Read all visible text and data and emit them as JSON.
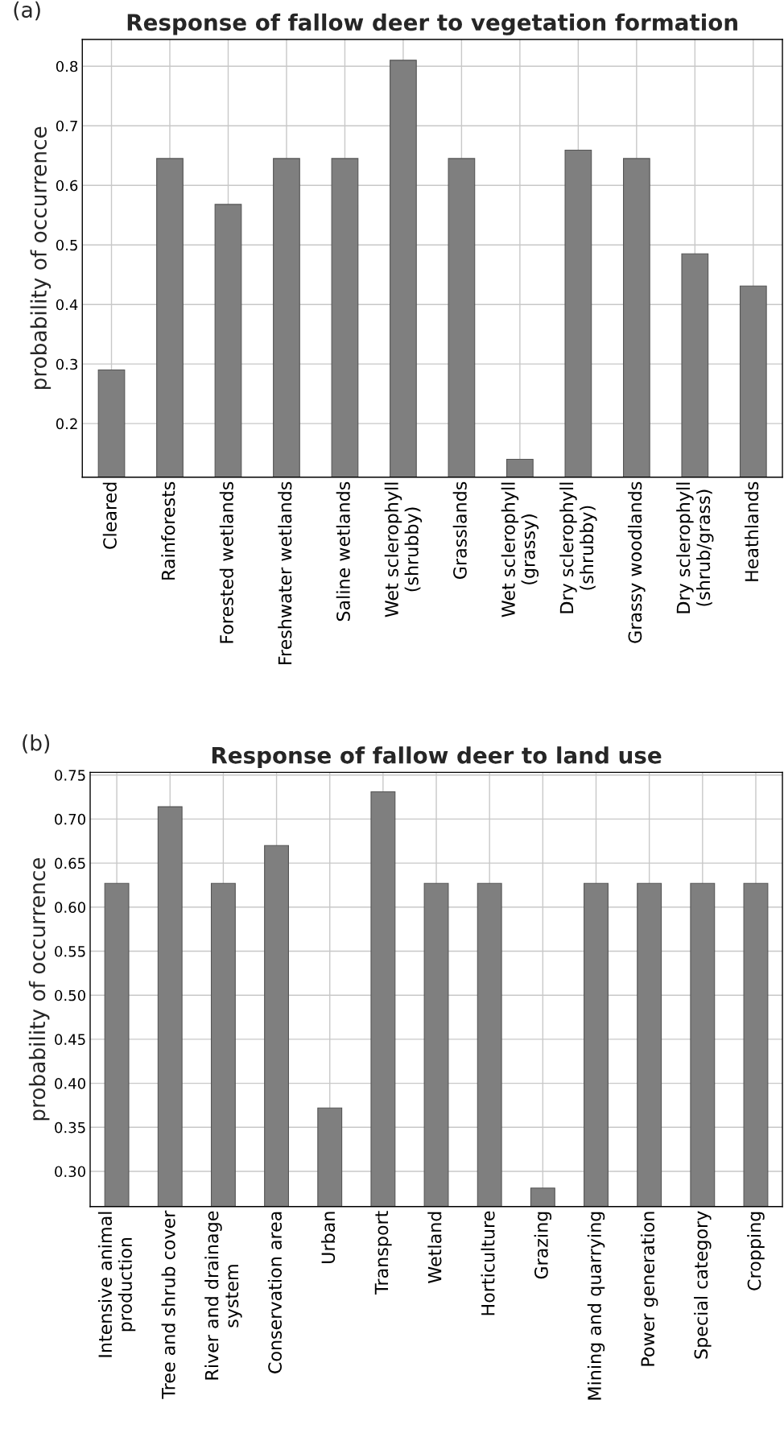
{
  "chart_data": [
    {
      "type": "bar",
      "title": "Response of fallow deer to vegetation formation",
      "ylabel": "probability of occurrence",
      "annotations": [
        "(a)"
      ],
      "categories": [
        "Cleared",
        "Rainforests",
        "Forested wetlands",
        "Freshwater wetlands",
        "Saline wetlands",
        "Wet sclerophyll\n(shrubby)",
        "Grasslands",
        "Wet sclerophyll\n(grassy)",
        "Dry sclerophyll\n(shrubby)",
        "Grassy woodlands",
        "Dry sclerophyll\n(shrub/grass)",
        "Heathlands"
      ],
      "values": [
        0.29,
        0.645,
        0.568,
        0.645,
        0.645,
        0.81,
        0.645,
        0.14,
        0.659,
        0.645,
        0.485,
        0.431
      ],
      "color": "#7f7f7f",
      "ylim": [
        0.11,
        0.845
      ],
      "yticks": [
        0.2,
        0.3,
        0.4,
        0.5,
        0.6,
        0.7,
        0.8
      ],
      "grid": true,
      "legend": false
    },
    {
      "type": "bar",
      "title": "Response of fallow deer to land use",
      "ylabel": "probability of occurrence",
      "annotations": [
        "(b)"
      ],
      "categories": [
        "Intensive animal\nproduction",
        "Tree and shrub cover",
        "River and drainage\nsystem",
        "Conservation area",
        "Urban",
        "Transport",
        "Wetland",
        "Horticulture",
        "Grazing",
        "Mining and quarrying",
        "Power generation",
        "Special category",
        "Cropping"
      ],
      "values": [
        0.627,
        0.714,
        0.627,
        0.67,
        0.372,
        0.731,
        0.627,
        0.627,
        0.281,
        0.627,
        0.627,
        0.627,
        0.627
      ],
      "color": "#7f7f7f",
      "ylim": [
        0.26,
        0.753
      ],
      "yticks": [
        {
          "value": 0.3,
          "label": "0.30"
        },
        {
          "value": 0.35,
          "label": "0.35"
        },
        {
          "value": 0.4,
          "label": "0.40"
        },
        {
          "value": 0.45,
          "label": "0.45"
        },
        {
          "value": 0.5,
          "label": "0.50"
        },
        {
          "value": 0.55,
          "label": "0.55"
        },
        {
          "value": 0.6,
          "label": "0.60"
        },
        {
          "value": 0.65,
          "label": "0.65"
        },
        {
          "value": 0.7,
          "label": "0.70"
        },
        {
          "value": 0.75,
          "label": "0.75"
        }
      ],
      "grid": true,
      "legend": false
    }
  ]
}
